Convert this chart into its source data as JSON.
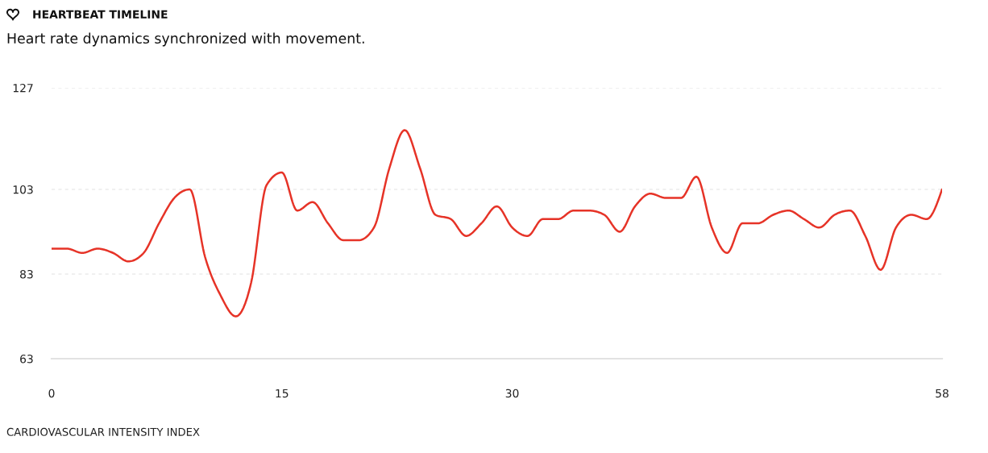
{
  "chart_data": {
    "type": "line",
    "title": "HEARTBEAT TIMELINE",
    "subtitle": "Heart rate dynamics synchronized with movement.",
    "xlabel": "CARDIOVASCULAR INTENSITY INDEX",
    "x": [
      0,
      1,
      2,
      3,
      4,
      5,
      6,
      7,
      8,
      9,
      10,
      11,
      12,
      13,
      14,
      15,
      16,
      17,
      18,
      19,
      20,
      21,
      22,
      23,
      24,
      25,
      26,
      27,
      28,
      29,
      30,
      31,
      32,
      33,
      34,
      35,
      36,
      37,
      38,
      39,
      40,
      41,
      42,
      43,
      44,
      45,
      46,
      47,
      48,
      49,
      50,
      51,
      52,
      53,
      54,
      55,
      56,
      57,
      58
    ],
    "series": [
      {
        "color": "#e63327",
        "values": [
          89,
          89,
          88,
          89,
          88,
          86,
          88,
          95,
          101,
          103,
          87,
          78,
          73,
          81,
          104,
          107,
          98,
          100,
          95,
          91,
          91,
          94,
          108,
          117,
          108,
          97,
          96,
          92,
          95,
          99,
          94,
          92,
          96,
          96,
          98,
          98,
          97,
          93,
          99,
          102,
          101,
          101,
          106,
          94,
          88,
          95,
          95,
          97,
          98,
          96,
          94,
          97,
          98,
          92,
          84,
          94,
          97,
          96,
          103
        ]
      }
    ],
    "xlim": [
      0,
      58
    ],
    "xticks": [
      0,
      15,
      30,
      58
    ],
    "ylim": [
      63,
      127
    ],
    "yticks": [
      63,
      83,
      103,
      127
    ],
    "grid": "y",
    "line_style": "solid"
  }
}
